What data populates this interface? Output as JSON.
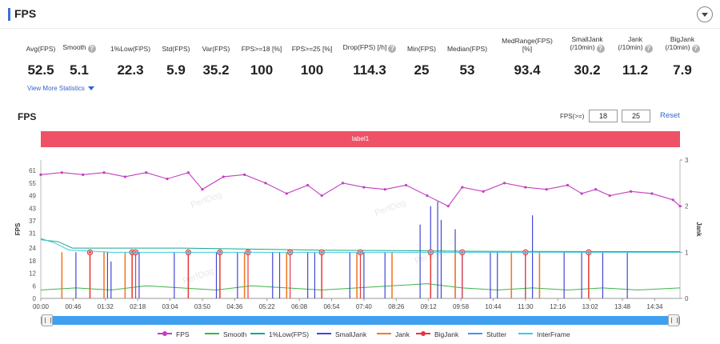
{
  "header": {
    "title": "FPS"
  },
  "stats": [
    {
      "label": "Avg(FPS)",
      "value": "52.5",
      "help": false
    },
    {
      "label": "Smooth",
      "value": "5.1",
      "help": true
    },
    {
      "label": "1%Low(FPS)",
      "value": "22.3",
      "help": false
    },
    {
      "label": "Std(FPS)",
      "value": "5.9",
      "help": false
    },
    {
      "label": "Var(FPS)",
      "value": "35.2",
      "help": false
    },
    {
      "label": "FPS>=18 [%]",
      "value": "100",
      "help": false
    },
    {
      "label": "FPS>=25 [%]",
      "value": "100",
      "help": false
    },
    {
      "label": "Drop(FPS) [/h]",
      "value": "114.3",
      "help": true
    },
    {
      "label": "Min(FPS)",
      "value": "25",
      "help": false
    },
    {
      "label": "Median(FPS)",
      "value": "53",
      "help": false
    },
    {
      "label": "MedRange(FPS)[%]",
      "value": "93.4",
      "help": false
    },
    {
      "label": "SmallJank (/10min)",
      "value": "30.2",
      "help": true
    },
    {
      "label": "Jank (/10min)",
      "value": "11.2",
      "help": true
    },
    {
      "label": "BigJank (/10min)",
      "value": "7.9",
      "help": true
    }
  ],
  "view_more": "View More Statistics",
  "chart_title": "FPS",
  "fps_filter": {
    "label": "FPS(>=)",
    "value1": "18",
    "value2": "25",
    "reset": "Reset"
  },
  "label_bar": "label1",
  "colors": {
    "fps": "#c23fc0",
    "smooth": "#3cb44b",
    "low1": "#18a88c",
    "smalljank": "#4346d6",
    "jank": "#f07a2a",
    "bigjank": "#e6363e",
    "stutter": "#4a8ff0",
    "interframe": "#3fc9e0",
    "label_bar": "#ef5166",
    "slider": "#3fa0f0"
  },
  "chart_data": {
    "type": "line",
    "title": "FPS",
    "ylabel": "FPS",
    "y2label": "Jank",
    "ylim": [
      0,
      66
    ],
    "y2lim": [
      0,
      3
    ],
    "yticks": [
      0,
      6,
      12,
      18,
      24,
      31,
      37,
      43,
      49,
      55,
      61
    ],
    "y2ticks": [
      0,
      1,
      2,
      3
    ],
    "xticks": [
      "00:00",
      "00:46",
      "01:32",
      "02:18",
      "03:04",
      "03:50",
      "04:36",
      "05:22",
      "06:08",
      "06:54",
      "07:40",
      "08:26",
      "09:12",
      "09:58",
      "10:44",
      "11:30",
      "12:16",
      "13:02",
      "13:48",
      "14:34"
    ],
    "xlim_seconds": [
      0,
      910
    ],
    "series": [
      {
        "name": "FPS",
        "axis": "left",
        "x": [
          0,
          30,
          60,
          90,
          120,
          150,
          180,
          210,
          230,
          260,
          290,
          320,
          350,
          380,
          400,
          430,
          460,
          490,
          520,
          550,
          580,
          600,
          630,
          660,
          690,
          720,
          750,
          770,
          790,
          810,
          840,
          870,
          900,
          910
        ],
        "y": [
          59,
          60,
          59,
          60,
          58,
          60,
          57,
          60,
          52,
          58,
          59,
          55,
          50,
          54,
          49,
          55,
          53,
          52,
          54,
          49,
          44,
          53,
          51,
          55,
          53,
          52,
          54,
          50,
          52,
          49,
          51,
          50,
          47,
          44
        ]
      },
      {
        "name": "Smooth",
        "axis": "left",
        "x": [
          0,
          50,
          100,
          150,
          200,
          250,
          300,
          350,
          400,
          450,
          500,
          550,
          600,
          650,
          700,
          750,
          800,
          850,
          910
        ],
        "y": [
          4,
          5,
          4,
          6,
          5,
          4,
          6,
          5,
          4,
          5,
          6,
          7,
          5,
          4,
          5,
          4,
          5,
          4,
          5
        ]
      },
      {
        "name": "1%Low(FPS)",
        "axis": "left",
        "x": [
          0,
          25,
          45,
          90,
          200,
          300,
          400,
          500,
          600,
          700,
          800,
          910
        ],
        "y": [
          28,
          27,
          24,
          24,
          24,
          23.5,
          23,
          22.8,
          22.5,
          22.4,
          22.3,
          22.3
        ]
      },
      {
        "name": "SmallJank",
        "axis": "right",
        "x": [
          50,
          95,
          100,
          140,
          190,
          250,
          280,
          330,
          340,
          380,
          390,
          440,
          460,
          490,
          540,
          555,
          565,
          570,
          590,
          600,
          640,
          650,
          690,
          700,
          745,
          770,
          800,
          835
        ],
        "y": [
          1,
          1,
          0.8,
          1,
          1,
          1,
          1,
          1,
          1,
          1,
          1,
          1,
          1,
          1,
          1.6,
          2,
          2.1,
          1.7,
          1.5,
          1,
          1,
          1,
          1,
          1.8,
          1,
          1,
          1,
          1
        ]
      },
      {
        "name": "Jank",
        "axis": "right",
        "x": [
          30,
          70,
          90,
          120,
          130,
          210,
          255,
          290,
          350,
          400,
          450,
          500,
          555,
          590,
          670,
          710,
          780
        ],
        "y": [
          1,
          1,
          1,
          1,
          1,
          1,
          1,
          1,
          1,
          1,
          1,
          1,
          1,
          1,
          1,
          1,
          1
        ]
      },
      {
        "name": "BigJank",
        "axis": "right",
        "x": [
          70,
          130,
          135,
          210,
          255,
          295,
          355,
          400,
          455,
          555,
          600,
          690,
          780
        ],
        "y": [
          1,
          1,
          1,
          1,
          1,
          1,
          1,
          1,
          1,
          1,
          1,
          1,
          1
        ]
      },
      {
        "name": "Stutter",
        "axis": "right",
        "x": [],
        "y": []
      },
      {
        "name": "InterFrame",
        "axis": "right",
        "x": [
          0,
          20,
          40,
          100,
          300,
          500,
          700,
          910
        ],
        "y": [
          1.3,
          1.2,
          1.05,
          1,
          1,
          1,
          1,
          1
        ]
      }
    ],
    "watermark": "PerfDog"
  },
  "legend": [
    "FPS",
    "Smooth",
    "1%Low(FPS)",
    "SmallJank",
    "Jank",
    "BigJank",
    "Stutter",
    "InterFrame"
  ]
}
